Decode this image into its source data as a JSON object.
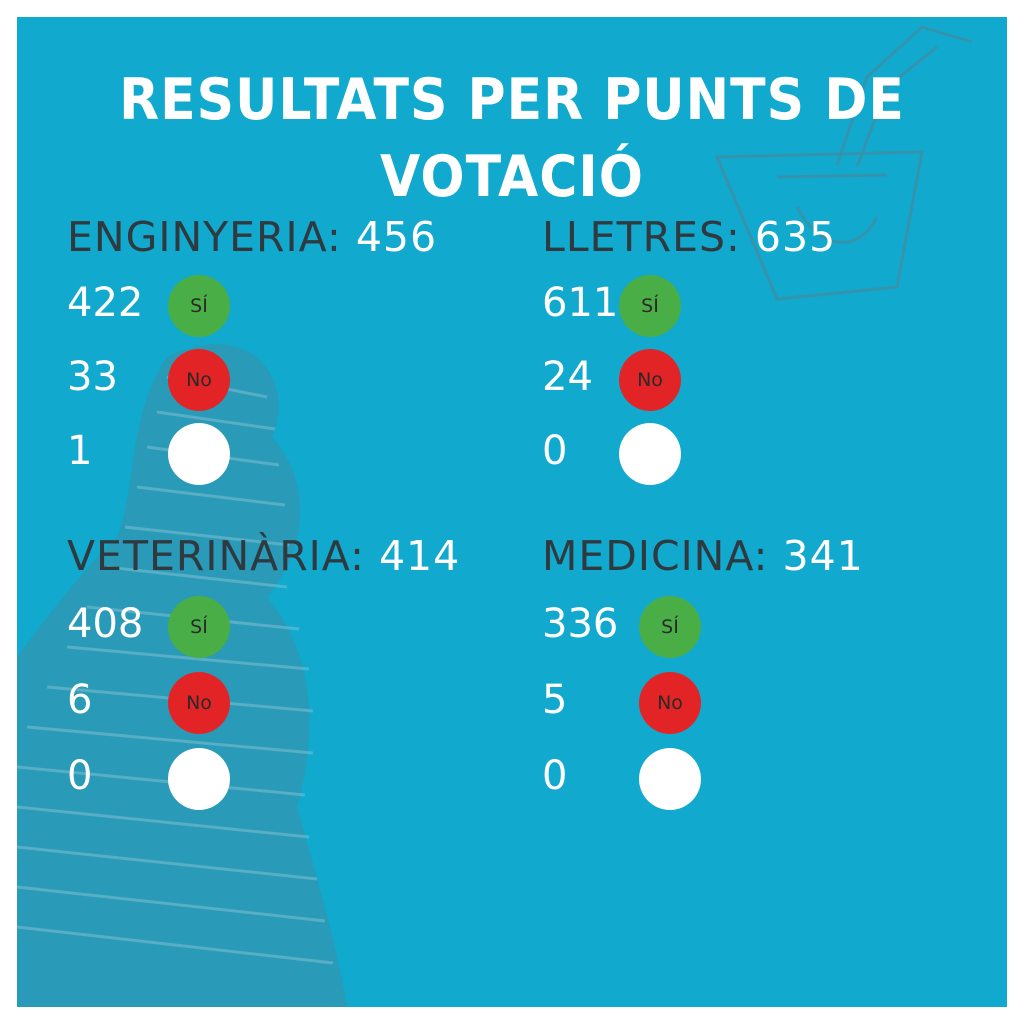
{
  "title": "RESULTATS PER PUNTS DE VOTACIÓ",
  "colors": {
    "background": "#11a9cd",
    "heading": "#2f3a40",
    "yes": "#4aae47",
    "no": "#e22426",
    "blank": "#ffffff"
  },
  "faculties": [
    {
      "name": "ENGINYERIA:",
      "total": "456",
      "results": [
        {
          "count": "422",
          "label": "SÍ"
        },
        {
          "count": "33",
          "label": "No"
        },
        {
          "count": "1",
          "label": ""
        }
      ]
    },
    {
      "name": "LLETRES:",
      "total": "635",
      "results": [
        {
          "count": "611",
          "label": "SÍ"
        },
        {
          "count": "24",
          "label": "No"
        },
        {
          "count": "0",
          "label": ""
        }
      ]
    },
    {
      "name": "VETERINÀRIA:",
      "total": "414",
      "results": [
        {
          "count": "408",
          "label": "SÍ"
        },
        {
          "count": "6",
          "label": "No"
        },
        {
          "count": "0",
          "label": ""
        }
      ]
    },
    {
      "name": "MEDICINA:",
      "total": "341",
      "results": [
        {
          "count": "336",
          "label": "SÍ"
        },
        {
          "count": "5",
          "label": "No"
        },
        {
          "count": "0",
          "label": ""
        }
      ]
    }
  ]
}
